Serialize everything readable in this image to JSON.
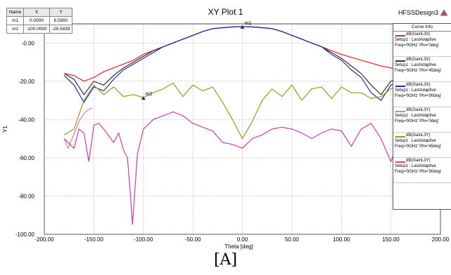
{
  "plot": {
    "title": "XY Plot 1",
    "design_name": "HFSSDesign3",
    "caption": "[A]"
  },
  "marker_table": {
    "headers": [
      "Name",
      "X",
      "Y"
    ],
    "rows": [
      [
        "m1",
        "0.0000",
        "8.5950"
      ],
      [
        "m2",
        "-100.0000",
        "-28.5439"
      ]
    ]
  },
  "curve_info": {
    "title": "Curve Info",
    "entries": [
      {
        "name": "dB(GainL3X)",
        "setup": "Setup1 : LastAdaptive",
        "params": "Freq='9GHz' Phi='0deg'",
        "color": "#e8231e"
      },
      {
        "name": "dB(GainL3X)",
        "setup": "Setup1 : LastAdaptive",
        "params": "Freq='9GHz' Phi='45deg'",
        "color": "#4a2334"
      },
      {
        "name": "dB(GainL3X)",
        "setup": "Setup1 : LastAdaptive",
        "params": "Freq='9GHz' Phi='90deg'",
        "color": "#1f2ea8"
      },
      {
        "name": "dB(GainL3Y)",
        "setup": "Setup1 : LastAdaptive",
        "params": "Freq='9GHz' Phi='0deg'",
        "color": "#e07898"
      },
      {
        "name": "dB(GainL3Y)",
        "setup": "Setup1 : LastAdaptive",
        "params": "Freq='9GHz' Phi='45deg'",
        "color": "#9a9a1e"
      },
      {
        "name": "dB(GainL3Y)",
        "setup": "Setup1 : LastAdaptive",
        "params": "Freq='9GHz' Phi='90deg'",
        "color": "#d43aa8"
      }
    ]
  },
  "chart_data": {
    "type": "line",
    "title": "XY Plot 1",
    "xlabel": "Theta [deg]",
    "ylabel": "Y1",
    "xlim": [
      -200,
      200
    ],
    "ylim": [
      -100,
      10
    ],
    "x_ticks": [
      "-200.00",
      "-150.00",
      "-100.00",
      "-50.00",
      "0.00",
      "50.00",
      "100.00",
      "150.00",
      "200.00"
    ],
    "x_tick_values": [
      -200,
      -150,
      -100,
      -50,
      0,
      50,
      100,
      150,
      200
    ],
    "y_ticks": [
      "-0.00",
      "-20.00",
      "-40.00",
      "-60.00",
      "-80.00",
      "-100.00"
    ],
    "y_tick_values": [
      0,
      -20,
      -40,
      -60,
      -80,
      -100
    ],
    "grid": true,
    "legend_position": "right",
    "markers": [
      {
        "name": "m1",
        "x": 0,
        "y": 8.595
      },
      {
        "name": "m2",
        "x": -100,
        "y": -28.5439
      }
    ],
    "series": [
      {
        "name": "dB(GainL3X) Freq='9GHz' Phi='0deg'",
        "color": "#e8231e",
        "x": [
          -180,
          -170,
          -160,
          -150,
          -140,
          -130,
          -120,
          -110,
          -100,
          -90,
          -80,
          -70,
          -60,
          -50,
          -40,
          -30,
          -20,
          -10,
          0,
          10,
          20,
          30,
          40,
          50,
          60,
          70,
          80,
          90,
          100,
          110,
          120,
          130,
          140,
          150,
          160,
          170,
          180
        ],
        "y": [
          -16,
          -17,
          -20,
          -18,
          -15,
          -13,
          -11,
          -9,
          -6,
          -4,
          -2,
          0,
          2,
          4,
          6,
          7.5,
          8,
          8.4,
          8.6,
          8.4,
          8,
          7.5,
          6,
          4,
          2,
          0,
          -2,
          -4,
          -6,
          -7.5,
          -9,
          -10.5,
          -12,
          -13,
          -15,
          -16,
          -17
        ]
      },
      {
        "name": "dB(GainL3X) Freq='9GHz' Phi='45deg'",
        "color": "#4a2334",
        "x": [
          -180,
          -170,
          -160,
          -150,
          -140,
          -130,
          -120,
          -110,
          -100,
          -90,
          -80,
          -70,
          -60,
          -50,
          -40,
          -30,
          -20,
          -10,
          0,
          10,
          20,
          30,
          40,
          50,
          60,
          70,
          80,
          90,
          100,
          110,
          120,
          130,
          140,
          150,
          160,
          170,
          180
        ],
        "y": [
          -16,
          -19,
          -27,
          -20,
          -22,
          -17,
          -13,
          -10,
          -7,
          -4,
          -2,
          0,
          2,
          4,
          6,
          7.5,
          8,
          8.4,
          8.6,
          8.4,
          8,
          7.5,
          6,
          4,
          2,
          0,
          -2,
          -5,
          -8,
          -12,
          -16,
          -22,
          -27,
          -20,
          -18,
          -17,
          -16
        ]
      },
      {
        "name": "dB(GainL3X) Freq='9GHz' Phi='90deg'",
        "color": "#1f2ea8",
        "x": [
          -180,
          -170,
          -160,
          -150,
          -140,
          -130,
          -120,
          -110,
          -100,
          -90,
          -80,
          -70,
          -60,
          -50,
          -40,
          -30,
          -20,
          -10,
          0,
          10,
          20,
          30,
          40,
          50,
          60,
          70,
          80,
          90,
          100,
          110,
          120,
          130,
          140,
          150,
          160,
          170,
          180
        ],
        "y": [
          -17,
          -22,
          -31,
          -23,
          -25,
          -19,
          -14,
          -11,
          -8,
          -5,
          -2,
          0,
          2,
          4,
          6,
          7.5,
          8,
          8.4,
          8.6,
          8.4,
          8,
          7.5,
          6,
          4,
          2,
          0,
          -2,
          -6,
          -9,
          -14,
          -18,
          -26,
          -30,
          -22,
          -20,
          -19,
          -17
        ]
      },
      {
        "name": "dB(GainL3Y) Freq='9GHz' Phi='0deg'",
        "color": "#e07898",
        "x": [
          -180,
          -176,
          -172,
          -168,
          -164,
          -160,
          -156,
          -152
        ],
        "y": [
          -50,
          -55,
          -50,
          -45,
          -40,
          -37,
          -35,
          -34
        ]
      },
      {
        "name": "dB(GainL3Y) Freq='9GHz' Phi='45deg'",
        "color": "#9a9a1e",
        "x": [
          -180,
          -170,
          -160,
          -150,
          -140,
          -130,
          -120,
          -110,
          -100,
          -90,
          -80,
          -70,
          -60,
          -50,
          -40,
          -30,
          -20,
          -10,
          0,
          10,
          20,
          30,
          40,
          50,
          60,
          70,
          80,
          90,
          100,
          110,
          120,
          130,
          140,
          150,
          160,
          170,
          180
        ],
        "y": [
          -48,
          -45,
          -30,
          -22,
          -27,
          -23,
          -28,
          -27,
          -28.5,
          -26,
          -24,
          -21,
          -28,
          -22,
          -25,
          -23,
          -31,
          -40,
          -50,
          -41,
          -30,
          -24,
          -28,
          -22,
          -30,
          -24,
          -23,
          -29,
          -23,
          -26,
          -26,
          -29,
          -28,
          -24,
          -22,
          -21,
          -20
        ]
      },
      {
        "name": "dB(GainL3Y) Freq='9GHz' Phi='90deg'",
        "color": "#d43aa8",
        "x": [
          -180,
          -170,
          -165,
          -160,
          -155,
          -150,
          -145,
          -140,
          -130,
          -125,
          -120,
          -116,
          -113,
          -111,
          -109,
          -106,
          -100,
          -90,
          -80,
          -70,
          -60,
          -50,
          -40,
          -30,
          -20,
          -10,
          0,
          10,
          20,
          30,
          40,
          50,
          60,
          70,
          80,
          90,
          100,
          110,
          120,
          130,
          140,
          150,
          160,
          170,
          180
        ],
        "y": [
          -50,
          -55,
          -45,
          -47,
          -62,
          -43,
          -42,
          -45,
          -52,
          -47,
          -56,
          -60,
          -80,
          -95,
          -80,
          -58,
          -45,
          -40,
          -38,
          -36,
          -38,
          -42,
          -44,
          -46,
          -52,
          -53,
          -55,
          -50,
          -48,
          -45,
          -44,
          -45,
          -47,
          -50,
          -47,
          -45,
          -46,
          -54,
          -45,
          -42,
          -50,
          -62,
          -48,
          -44,
          -45
        ]
      }
    ]
  }
}
